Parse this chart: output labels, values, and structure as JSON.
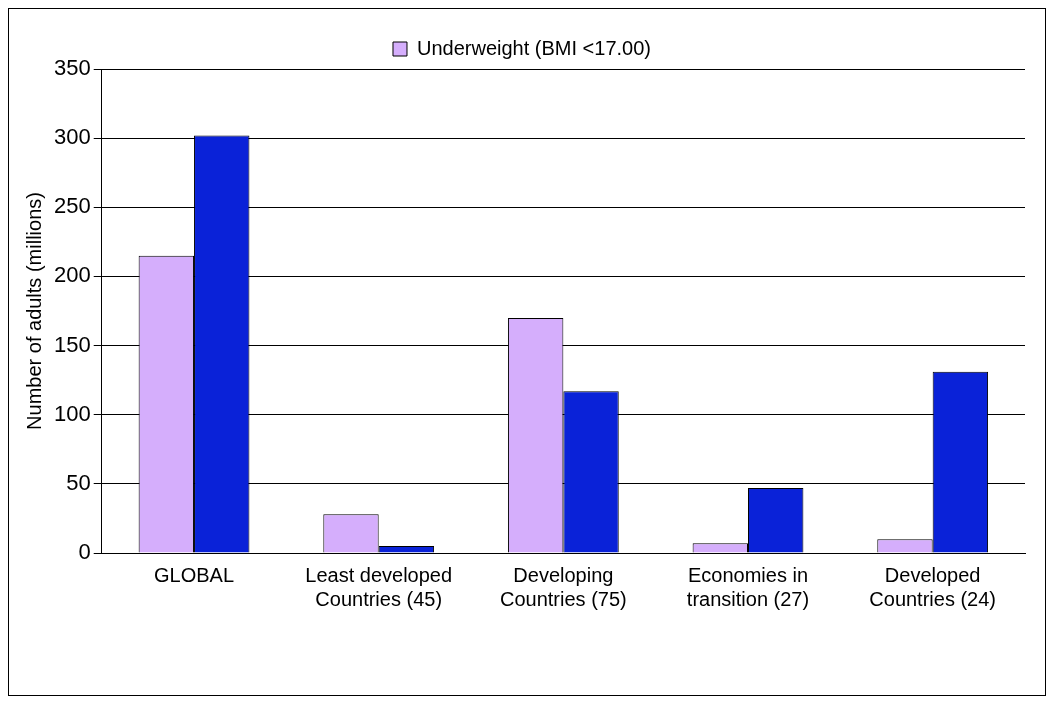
{
  "chart_data": {
    "type": "bar",
    "ylabel": "Number of adults (millions)",
    "categories": [
      "GLOBAL",
      "Least developed Countries (45)",
      "Developing Countries (75)",
      "Economies in transition (27)",
      "Developed Countries (24)"
    ],
    "series": [
      {
        "name": "Underweight (BMI <17.00)",
        "color": "#d5aefc",
        "values": [
          215,
          28,
          170,
          7,
          10
        ]
      },
      {
        "color": "#0a22d8",
        "values": [
          302,
          5,
          117,
          47,
          131
        ]
      }
    ],
    "ylim": [
      0,
      350
    ],
    "yticks": [
      0,
      50,
      100,
      150,
      200,
      250,
      300,
      350
    ],
    "grid": "y",
    "legend": "top"
  }
}
